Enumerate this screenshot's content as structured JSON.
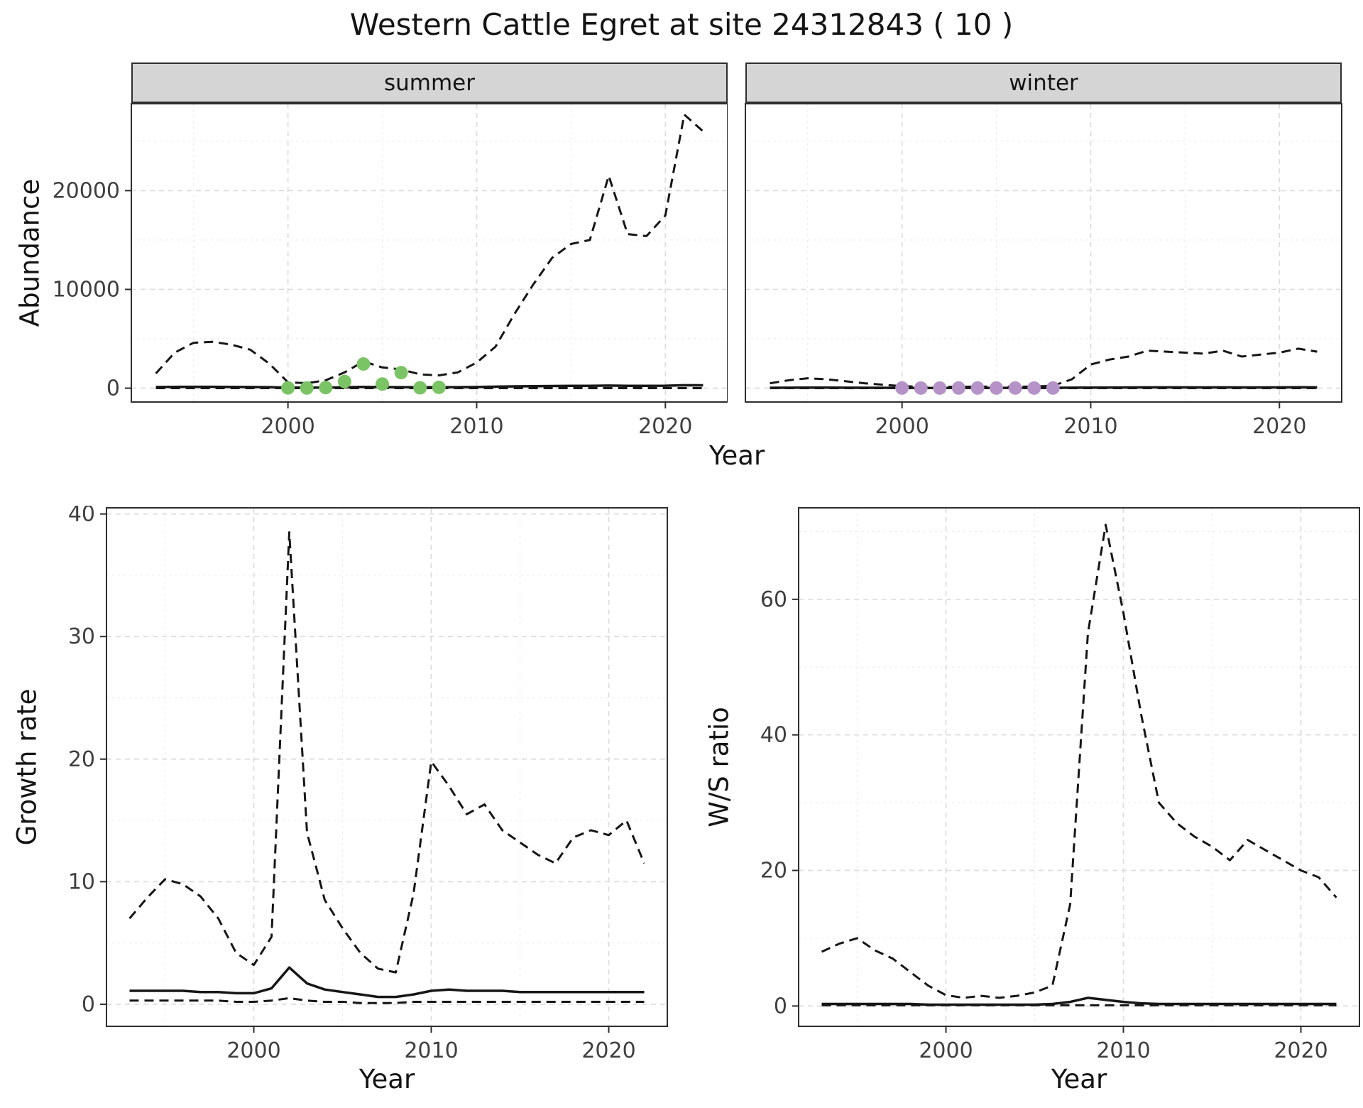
{
  "title": "Western Cattle Egret at site 24312843 ( 10 )",
  "colors": {
    "line": "#161616",
    "grid_major": "#dcdcdc",
    "grid_minor": "#ececec",
    "panel_border": "#2e2e2e",
    "strip_background": "#d5d5d5",
    "tick_label": "#3f3f3f",
    "summer_points": "#7bc465",
    "winter_points": "#b592c8"
  },
  "chart_data": [
    {
      "id": "abundance_summer",
      "type": "line",
      "facet_label": "summer",
      "ylabel": "Abundance",
      "xlabel": "Year",
      "grid": "major+minor",
      "legend": "none",
      "xlim": [
        1991.7,
        2023.3
      ],
      "ylim": [
        -1400,
        28800
      ],
      "xticks": [
        2000,
        2010,
        2020
      ],
      "xticks_minor": [
        1995,
        2005,
        2015
      ],
      "yticks": [
        0,
        10000,
        20000
      ],
      "yticks_minor": [
        5000,
        15000,
        25000
      ],
      "x": [
        1993,
        1994,
        1995,
        1996,
        1997,
        1998,
        1999,
        2000,
        2001,
        2002,
        2003,
        2004,
        2005,
        2006,
        2007,
        2008,
        2009,
        2010,
        2011,
        2012,
        2013,
        2014,
        2015,
        2016,
        2017,
        2018,
        2019,
        2020,
        2021,
        2022
      ],
      "series": [
        {
          "name": "upper_95ci",
          "style": "dashed",
          "values": [
            1500,
            3600,
            4600,
            4700,
            4400,
            3900,
            2500,
            600,
            500,
            800,
            1600,
            2700,
            2100,
            1900,
            1400,
            1300,
            1600,
            2600,
            4200,
            7500,
            10500,
            13200,
            14600,
            15000,
            21500,
            15600,
            15400,
            17500,
            27700,
            26000
          ]
        },
        {
          "name": "median",
          "style": "solid",
          "values": [
            120,
            130,
            140,
            140,
            130,
            120,
            100,
            60,
            50,
            60,
            90,
            130,
            110,
            100,
            90,
            90,
            100,
            120,
            150,
            180,
            200,
            220,
            230,
            230,
            260,
            240,
            240,
            250,
            300,
            290
          ]
        },
        {
          "name": "lower_95ci",
          "style": "dashed",
          "values": [
            0,
            0,
            0,
            0,
            0,
            0,
            0,
            0,
            0,
            0,
            0,
            0,
            0,
            0,
            0,
            0,
            0,
            0,
            0,
            0,
            0,
            0,
            0,
            0,
            0,
            0,
            0,
            0,
            0,
            0
          ]
        }
      ],
      "points": {
        "name": "observed_counts",
        "color": "#7bc465",
        "x": [
          2000,
          2001,
          2002,
          2003,
          2004,
          2005,
          2006,
          2007,
          2008
        ],
        "y": [
          30,
          20,
          60,
          680,
          2450,
          420,
          1580,
          40,
          80
        ]
      }
    },
    {
      "id": "abundance_winter",
      "type": "line",
      "facet_label": "winter",
      "ylabel": "Abundance",
      "xlabel": "Year",
      "grid": "major+minor",
      "legend": "none",
      "xlim": [
        1991.7,
        2023.3
      ],
      "ylim": [
        -1400,
        28800
      ],
      "xticks": [
        2000,
        2010,
        2020
      ],
      "xticks_minor": [
        1995,
        2005,
        2015
      ],
      "yticks": [
        0,
        10000,
        20000
      ],
      "yticks_minor": [
        5000,
        15000,
        25000
      ],
      "x": [
        1993,
        1994,
        1995,
        1996,
        1997,
        1998,
        1999,
        2000,
        2001,
        2002,
        2003,
        2004,
        2005,
        2006,
        2007,
        2008,
        2009,
        2010,
        2011,
        2012,
        2013,
        2014,
        2015,
        2016,
        2017,
        2018,
        2019,
        2020,
        2021,
        2022
      ],
      "series": [
        {
          "name": "upper_95ci",
          "style": "dashed",
          "values": [
            500,
            800,
            1000,
            900,
            700,
            500,
            350,
            200,
            150,
            130,
            140,
            160,
            150,
            150,
            170,
            250,
            900,
            2400,
            2900,
            3200,
            3800,
            3700,
            3600,
            3500,
            3800,
            3200,
            3400,
            3600,
            4000,
            3700
          ]
        },
        {
          "name": "median",
          "style": "solid",
          "values": [
            40,
            45,
            50,
            50,
            45,
            40,
            35,
            25,
            20,
            20,
            25,
            30,
            28,
            28,
            30,
            35,
            45,
            60,
            70,
            75,
            80,
            80,
            78,
            76,
            80,
            75,
            76,
            78,
            85,
            80
          ]
        },
        {
          "name": "lower_95ci",
          "style": "dashed",
          "values": [
            0,
            0,
            0,
            0,
            0,
            0,
            0,
            0,
            0,
            0,
            0,
            0,
            0,
            0,
            0,
            0,
            0,
            0,
            0,
            0,
            0,
            0,
            0,
            0,
            0,
            0,
            0,
            0,
            0,
            0
          ]
        }
      ],
      "points": {
        "name": "observed_counts",
        "color": "#b592c8",
        "x": [
          2000,
          2001,
          2002,
          2003,
          2004,
          2005,
          2006,
          2007,
          2008
        ],
        "y": [
          15,
          10,
          12,
          18,
          20,
          15,
          18,
          12,
          15
        ]
      }
    },
    {
      "id": "growth_rate",
      "type": "line",
      "facet_label": "",
      "ylabel": "Growth rate",
      "xlabel": "Year",
      "grid": "major+minor",
      "legend": "none",
      "xlim": [
        1991.7,
        2023.3
      ],
      "ylim": [
        -1.8,
        40.5
      ],
      "xticks": [
        2000,
        2010,
        2020
      ],
      "xticks_minor": [
        1995,
        2005,
        2015
      ],
      "yticks": [
        0,
        10,
        20,
        30,
        40
      ],
      "yticks_minor": [
        5,
        15,
        25,
        35
      ],
      "x": [
        1993,
        1994,
        1995,
        1996,
        1997,
        1998,
        1999,
        2000,
        2001,
        2002,
        2003,
        2004,
        2005,
        2006,
        2007,
        2008,
        2009,
        2010,
        2011,
        2012,
        2013,
        2014,
        2015,
        2016,
        2017,
        2018,
        2019,
        2020,
        2021,
        2022
      ],
      "series": [
        {
          "name": "upper_95ci",
          "style": "dashed",
          "values": [
            7.0,
            8.7,
            10.2,
            9.8,
            8.8,
            7.0,
            4.2,
            3.2,
            5.5,
            38.5,
            14.0,
            8.5,
            6.2,
            4.2,
            2.9,
            2.6,
            9.0,
            19.8,
            17.8,
            15.5,
            16.3,
            14.2,
            13.2,
            12.2,
            11.5,
            13.6,
            14.2,
            13.8,
            15.0,
            11.5
          ]
        },
        {
          "name": "median",
          "style": "solid",
          "values": [
            1.1,
            1.1,
            1.1,
            1.1,
            1.0,
            1.0,
            0.9,
            0.9,
            1.3,
            3.0,
            1.7,
            1.2,
            1.0,
            0.8,
            0.6,
            0.6,
            0.8,
            1.1,
            1.2,
            1.1,
            1.1,
            1.1,
            1.0,
            1.0,
            1.0,
            1.0,
            1.0,
            1.0,
            1.0,
            1.0
          ]
        },
        {
          "name": "lower_95ci",
          "style": "dashed",
          "values": [
            0.3,
            0.3,
            0.3,
            0.3,
            0.3,
            0.3,
            0.2,
            0.2,
            0.3,
            0.5,
            0.3,
            0.2,
            0.2,
            0.1,
            0.1,
            0.1,
            0.2,
            0.2,
            0.2,
            0.2,
            0.2,
            0.2,
            0.2,
            0.2,
            0.2,
            0.2,
            0.2,
            0.2,
            0.2,
            0.2
          ]
        }
      ]
    },
    {
      "id": "ws_ratio",
      "type": "line",
      "facet_label": "",
      "ylabel": "W/S ratio",
      "xlabel": "Year",
      "grid": "major+minor",
      "legend": "none",
      "xlim": [
        1991.7,
        2023.3
      ],
      "ylim": [
        -3,
        73.5
      ],
      "xticks": [
        2000,
        2010,
        2020
      ],
      "xticks_minor": [
        1995,
        2005,
        2015
      ],
      "yticks": [
        0,
        20,
        40,
        60
      ],
      "yticks_minor": [
        10,
        30,
        50,
        70
      ],
      "x": [
        1993,
        1994,
        1995,
        1996,
        1997,
        1998,
        1999,
        2000,
        2001,
        2002,
        2003,
        2004,
        2005,
        2006,
        2007,
        2008,
        2009,
        2010,
        2011,
        2012,
        2013,
        2014,
        2015,
        2016,
        2017,
        2018,
        2019,
        2020,
        2021,
        2022
      ],
      "series": [
        {
          "name": "upper_95ci",
          "style": "dashed",
          "values": [
            8.0,
            9.2,
            10.0,
            8.2,
            7.0,
            5.0,
            3.0,
            1.6,
            1.2,
            1.5,
            1.2,
            1.5,
            2.0,
            3.0,
            15.0,
            55.0,
            71.0,
            58.0,
            43.0,
            30.0,
            27.0,
            25.0,
            23.5,
            21.5,
            24.5,
            23.0,
            21.5,
            20.0,
            19.0,
            16.0
          ]
        },
        {
          "name": "median",
          "style": "solid",
          "values": [
            0.3,
            0.3,
            0.3,
            0.3,
            0.3,
            0.3,
            0.2,
            0.2,
            0.2,
            0.2,
            0.2,
            0.2,
            0.2,
            0.3,
            0.6,
            1.2,
            0.9,
            0.6,
            0.4,
            0.3,
            0.3,
            0.3,
            0.3,
            0.3,
            0.3,
            0.3,
            0.3,
            0.3,
            0.3,
            0.3
          ]
        },
        {
          "name": "lower_95ci",
          "style": "dashed",
          "values": [
            0.1,
            0.1,
            0.1,
            0.1,
            0.1,
            0.1,
            0.1,
            0.1,
            0.1,
            0.1,
            0.1,
            0.1,
            0.1,
            0.1,
            0.1,
            0.1,
            0.1,
            0.1,
            0.1,
            0.1,
            0.1,
            0.1,
            0.1,
            0.1,
            0.1,
            0.1,
            0.1,
            0.1,
            0.1,
            0.1
          ]
        }
      ]
    }
  ]
}
